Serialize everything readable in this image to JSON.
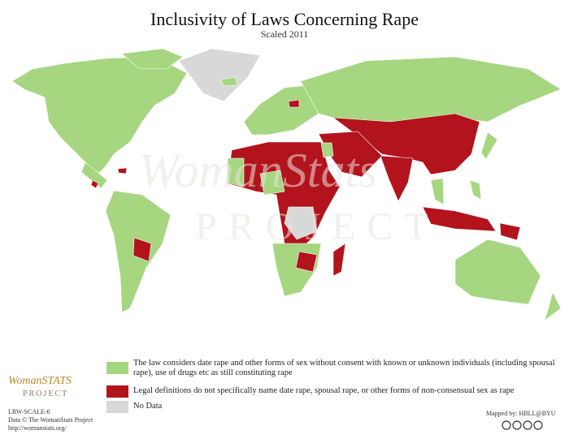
{
  "header": {
    "title": "Inclusivity of Laws Concerning Rape",
    "subtitle": "Scaled 2011"
  },
  "watermark": {
    "brand": "WomanStats",
    "sub": "PROJECT"
  },
  "legend": {
    "items": [
      {
        "label": "The law considers date rape and other forms of sex without consent with known or unknown individuals (including spousal rape), use of drugs etc as still constituting rape",
        "color": "#a6d680"
      },
      {
        "label": "Legal definitions do not specifically name date rape, spousal rape, or other forms of non-consensual sex as rape",
        "color": "#b3131c"
      },
      {
        "label": "No Data",
        "color": "#d8d8d8"
      }
    ]
  },
  "footer": {
    "logo": "WomanSTATS",
    "logo_sub": "PROJECT",
    "scale": "LRW-SCALE-6",
    "data": "Data © The WomanStats Project",
    "url": "http://womanstats.org/",
    "mapped": "Mapped by: HBLL@BYU"
  }
}
